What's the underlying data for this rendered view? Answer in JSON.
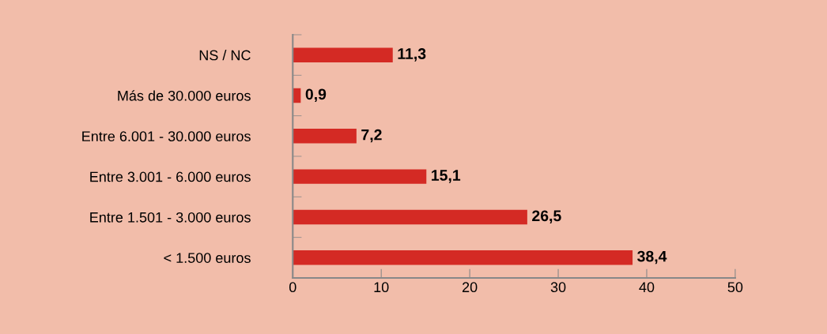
{
  "chart_data": {
    "type": "bar",
    "orientation": "horizontal",
    "categories": [
      "NS / NC",
      "Más de 30.000 euros",
      "Entre 6.001 - 30.000 euros",
      "Entre 3.001 - 6.000 euros",
      "Entre 1.501 - 3.000 euros",
      "< 1.500 euros"
    ],
    "values": [
      11.3,
      0.9,
      7.2,
      15.1,
      26.5,
      38.4
    ],
    "value_labels": [
      "11,3",
      "0,9",
      "7,2",
      "15,1",
      "26,5",
      "38,4"
    ],
    "color": "#d42a24",
    "xlim": [
      0,
      50
    ],
    "xticks": [
      0,
      10,
      20,
      30,
      40,
      50
    ],
    "grid": false
  }
}
